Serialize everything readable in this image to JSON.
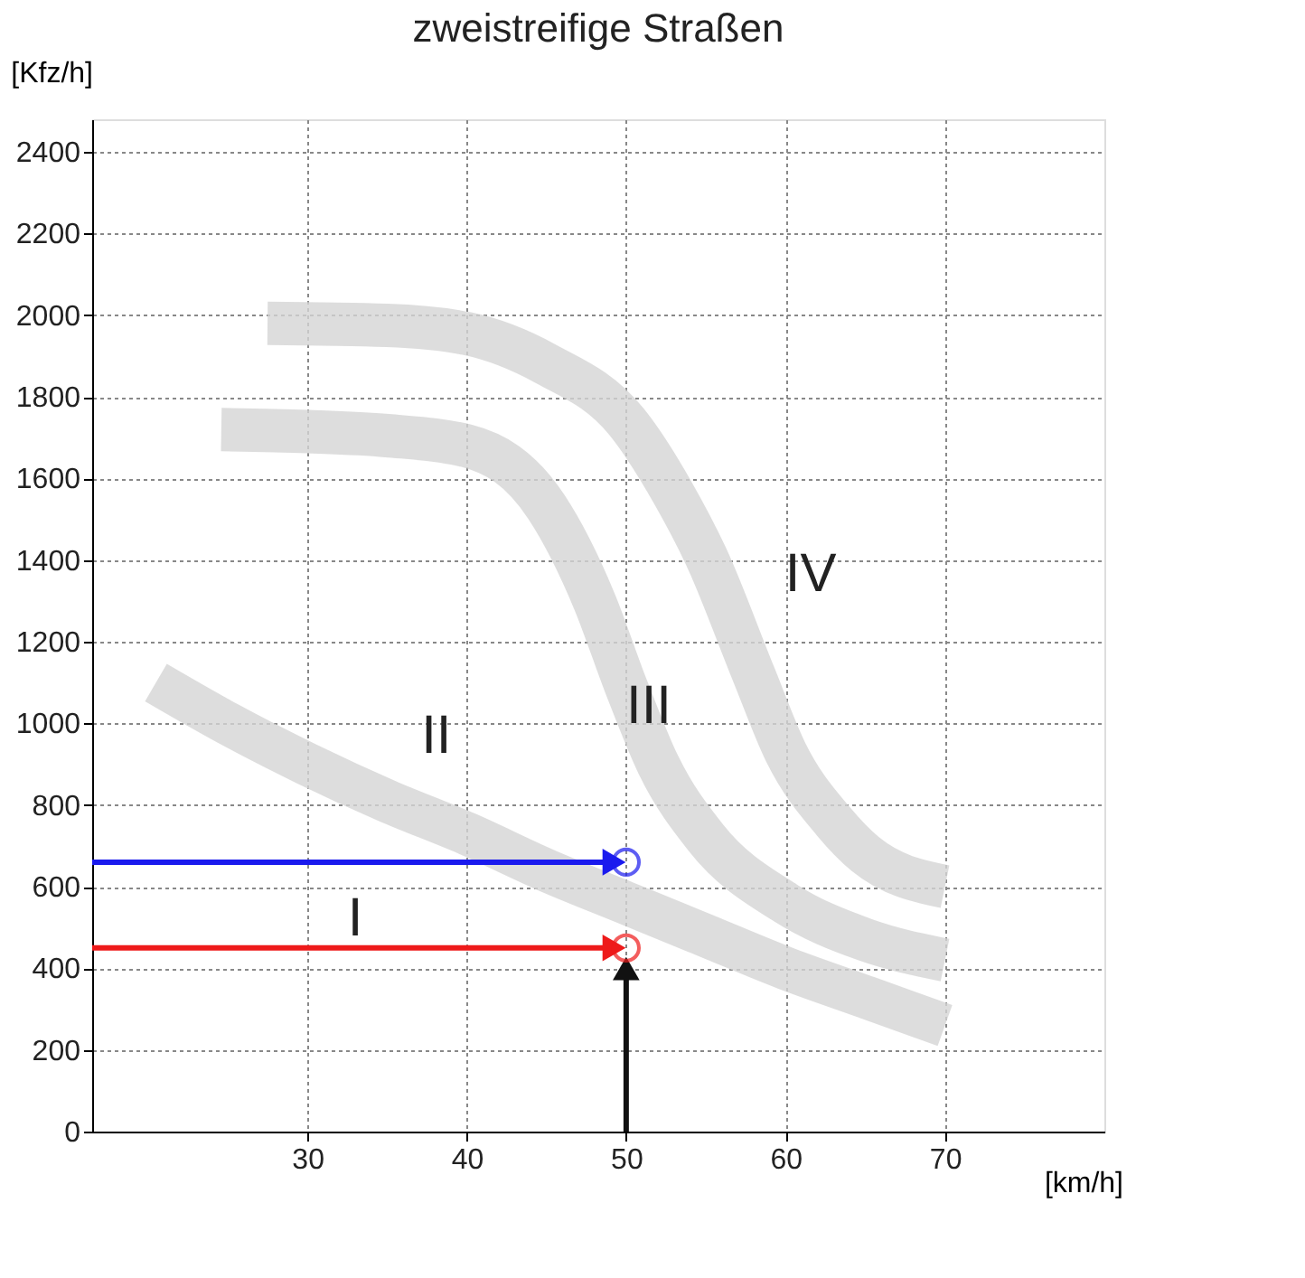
{
  "chart_data": {
    "type": "line",
    "title": "zweistreifige Straßen",
    "xlabel": "[km/h]",
    "ylabel": "[Kfz/h]",
    "xlim": [
      16.5,
      80
    ],
    "ylim": [
      0,
      2480
    ],
    "xticks": [
      30,
      40,
      50,
      60,
      70
    ],
    "yticks": [
      0,
      200,
      400,
      600,
      800,
      1000,
      1200,
      1400,
      1600,
      1800,
      2000,
      2200,
      2400
    ],
    "grid": true,
    "series": [
      {
        "color": "#d4d4d4",
        "x": [
          20.5,
          25,
          30,
          35,
          40,
          45,
          50,
          55,
          60,
          65,
          70
        ],
        "values": [
          1100,
          1000,
          900,
          810,
          730,
          640,
          560,
          480,
          400,
          330,
          260
        ]
      },
      {
        "color": "#d4d4d4",
        "x": [
          24.6,
          30,
          35,
          40,
          45,
          48,
          50,
          52,
          55,
          60,
          65,
          70
        ],
        "values": [
          1720,
          1715,
          1705,
          1680,
          1530,
          1300,
          1090,
          900,
          720,
          560,
          470,
          420
        ]
      },
      {
        "color": "#d4d4d4",
        "x": [
          27.5,
          35,
          40,
          45,
          50,
          53,
          55,
          58,
          60,
          63,
          65,
          70
        ],
        "values": [
          1980,
          1975,
          1955,
          1880,
          1740,
          1560,
          1410,
          1120,
          930,
          760,
          680,
          600
        ]
      },
      {
        "color": "#1a1aee",
        "marker": "triangle",
        "x": [
          16.5,
          49
        ],
        "values": [
          660,
          660
        ]
      },
      {
        "color": "#ee1a1a",
        "marker": "triangle",
        "x": [
          16.5,
          49
        ],
        "values": [
          450,
          450
        ]
      },
      {
        "color": "#111111",
        "marker": "triangle",
        "x": [
          50,
          50
        ],
        "values": [
          0,
          390
        ]
      },
      {
        "type": "scatter",
        "color": "#1a1aee",
        "marker": "circle",
        "x": [
          50
        ],
        "values": [
          660
        ]
      },
      {
        "type": "scatter",
        "color": "#ee1a1a",
        "marker": "circle",
        "x": [
          50
        ],
        "values": [
          450
        ]
      }
    ],
    "annotations": [
      "I",
      "II",
      "III",
      "IV"
    ]
  }
}
